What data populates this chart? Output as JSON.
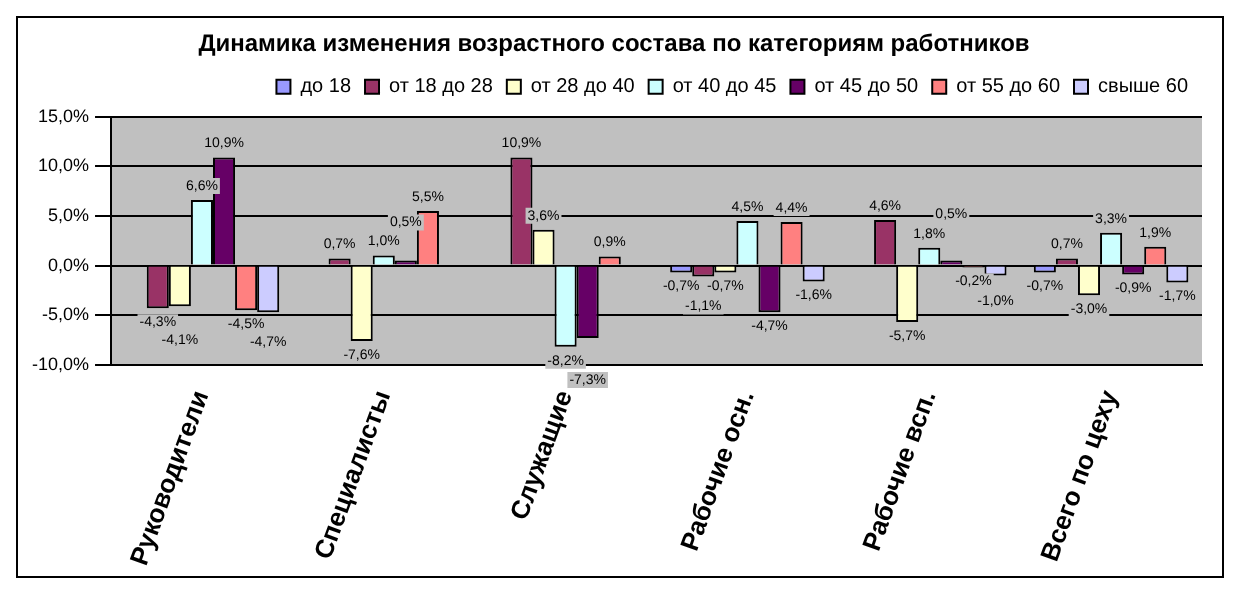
{
  "chart_data": {
    "type": "bar",
    "title": "Динамика изменения возрастного состава по категориям работников",
    "categories": [
      "Руководители",
      "Специалисты",
      "Служащие",
      "Рабочие осн.",
      "Рабочие всп.",
      "Всего по цеху"
    ],
    "series": [
      {
        "name": "до 18",
        "color": "#9999ff",
        "values": [
          null,
          null,
          null,
          -0.7,
          null,
          -0.7
        ],
        "value_labels": [
          null,
          null,
          null,
          "-0,7%",
          null,
          "-0,7%"
        ]
      },
      {
        "name": "от 18 до 28",
        "color": "#993366",
        "values": [
          -4.3,
          0.7,
          10.9,
          -1.1,
          4.6,
          0.7
        ],
        "value_labels": [
          "-4,3%",
          "0,7%",
          "10,9%",
          "-1,1%",
          "4,6%",
          "0,7%"
        ]
      },
      {
        "name": "от 28 до 40",
        "color": "#ffffcc",
        "values": [
          -4.1,
          -7.6,
          3.6,
          -0.7,
          -5.7,
          -3.0
        ],
        "value_labels": [
          "-4,1%",
          "-7,6%",
          "3,6%",
          "-0,7%",
          "-5,7%",
          "-3,0%"
        ]
      },
      {
        "name": "от 40 до 45",
        "color": "#ccffff",
        "values": [
          6.6,
          1.0,
          -8.2,
          4.5,
          1.8,
          3.3
        ],
        "value_labels": [
          "6,6%",
          "1,0%",
          "-8,2%",
          "4,5%",
          "1,8%",
          "3,3%"
        ]
      },
      {
        "name": "от 45 до 50",
        "color": "#660066",
        "values": [
          10.9,
          0.5,
          -7.3,
          -4.7,
          0.5,
          -0.9
        ],
        "value_labels": [
          "10,9%",
          "0,5%",
          "-7,3%",
          "-4,7%",
          "0,5%",
          "-0,9%"
        ]
      },
      {
        "name": "от 55 до 60",
        "color": "#ff8080",
        "values": [
          -4.5,
          5.5,
          0.9,
          4.4,
          -0.2,
          1.9
        ],
        "value_labels": [
          "-4,5%",
          "5,5%",
          "0,9%",
          "4,4%",
          "-0,2%",
          "1,9%"
        ]
      },
      {
        "name": "свыше 60",
        "color": "#ccccff",
        "values": [
          -4.7,
          null,
          null,
          -1.6,
          -1.0,
          -1.7
        ],
        "value_labels": [
          "-4,7%",
          null,
          null,
          "-1,6%",
          "-1,0%",
          "-1,7%"
        ]
      }
    ],
    "ylim": [
      -10,
      15
    ],
    "yticks": [
      {
        "value": -10,
        "label": "-10,0%"
      },
      {
        "value": -5,
        "label": "-5,0%"
      },
      {
        "value": 0,
        "label": "0,0%"
      },
      {
        "value": 5,
        "label": "5,0%"
      },
      {
        "value": 10,
        "label": "10,0%"
      },
      {
        "value": 15,
        "label": "15,0%"
      }
    ],
    "grid": "y",
    "legend": "top"
  }
}
